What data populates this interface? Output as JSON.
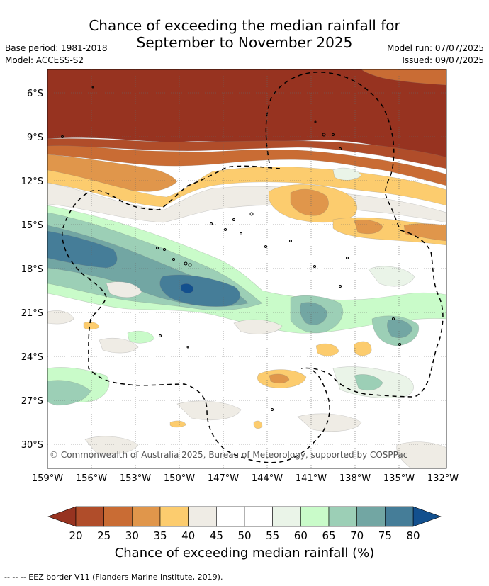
{
  "title": {
    "line1": "Chance of exceeding the median rainfall for",
    "line2": "September to November 2025"
  },
  "meta": {
    "base_period": "Base period: 1981-2018",
    "model": "Model: ACCESS-S2",
    "model_run": "Model run: 07/07/2025",
    "issued": "Issued: 09/07/2025"
  },
  "map": {
    "lat_ticks": [
      "6°S",
      "9°S",
      "12°S",
      "15°S",
      "18°S",
      "21°S",
      "24°S",
      "27°S",
      "30°S"
    ],
    "lon_ticks": [
      "159°W",
      "156°W",
      "153°W",
      "150°W",
      "147°W",
      "144°W",
      "141°W",
      "138°W",
      "135°W",
      "132°W"
    ],
    "copyright": "© Commonwealth of Australia 2025, Bureau of Meteorology, supported by COSPPac",
    "colors": {
      "lt20": "#973320",
      "c20_25": "#b04d2a",
      "c25_30": "#c96c34",
      "c30_35": "#e0964b",
      "c35_40": "#fccc6e",
      "c40_45": "#efece5",
      "c45_55": "#ffffff",
      "c55_60": "#eaf4e8",
      "c60_65": "#c9fbc9",
      "c65_70": "#9ccfb6",
      "c70_75": "#72a6a3",
      "c75_80": "#457d98",
      "gt80": "#13508e"
    }
  },
  "colorbar": {
    "ticks": [
      "20",
      "25",
      "30",
      "35",
      "40",
      "45",
      "50",
      "55",
      "60",
      "65",
      "70",
      "75",
      "80"
    ],
    "label": "Chance of exceeding median rainfall (%)"
  },
  "footer": "--  --  -- EEZ border V11 (Flanders Marine Institute, 2019)."
}
